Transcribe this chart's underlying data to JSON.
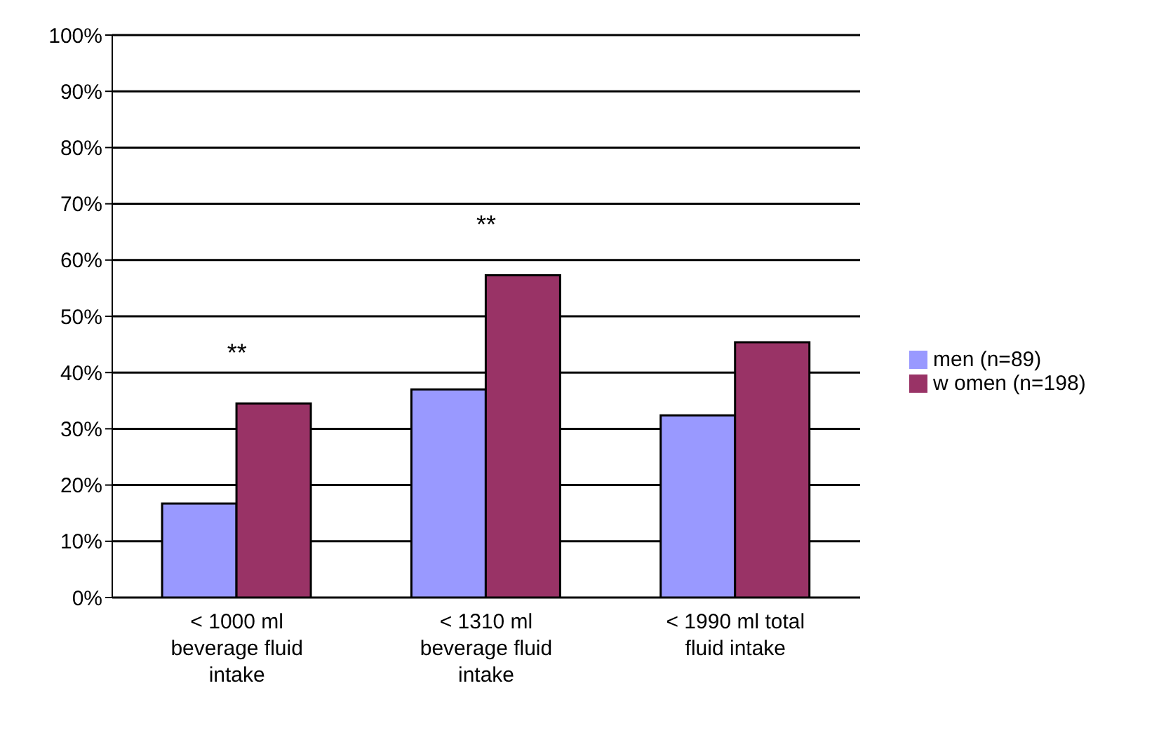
{
  "chart_data": {
    "type": "bar",
    "categories": [
      "< 1000 ml beverage fluid intake",
      "< 1310 ml beverage fluid intake",
      "< 1990 ml total fluid intake"
    ],
    "series": [
      {
        "name": "men (n=89)",
        "color": "#9999ff",
        "values": [
          16.7,
          37.0,
          32.4
        ]
      },
      {
        "name": "w omen (n=198)",
        "color": "#993366",
        "values": [
          34.5,
          57.3,
          45.4
        ]
      }
    ],
    "ylim": [
      0,
      100
    ],
    "yticks": [
      {
        "value": 0,
        "label": "0%"
      },
      {
        "value": 10,
        "label": "10%"
      },
      {
        "value": 20,
        "label": "20%"
      },
      {
        "value": 30,
        "label": "30%"
      },
      {
        "value": 40,
        "label": "40%"
      },
      {
        "value": 50,
        "label": "50%"
      },
      {
        "value": 60,
        "label": "60%"
      },
      {
        "value": 70,
        "label": "70%"
      },
      {
        "value": 80,
        "label": "80%"
      },
      {
        "value": 90,
        "label": "90%"
      },
      {
        "value": 100,
        "label": "100%"
      }
    ],
    "grid": "y",
    "legend": "right",
    "annotations": [
      "**",
      "**"
    ]
  }
}
